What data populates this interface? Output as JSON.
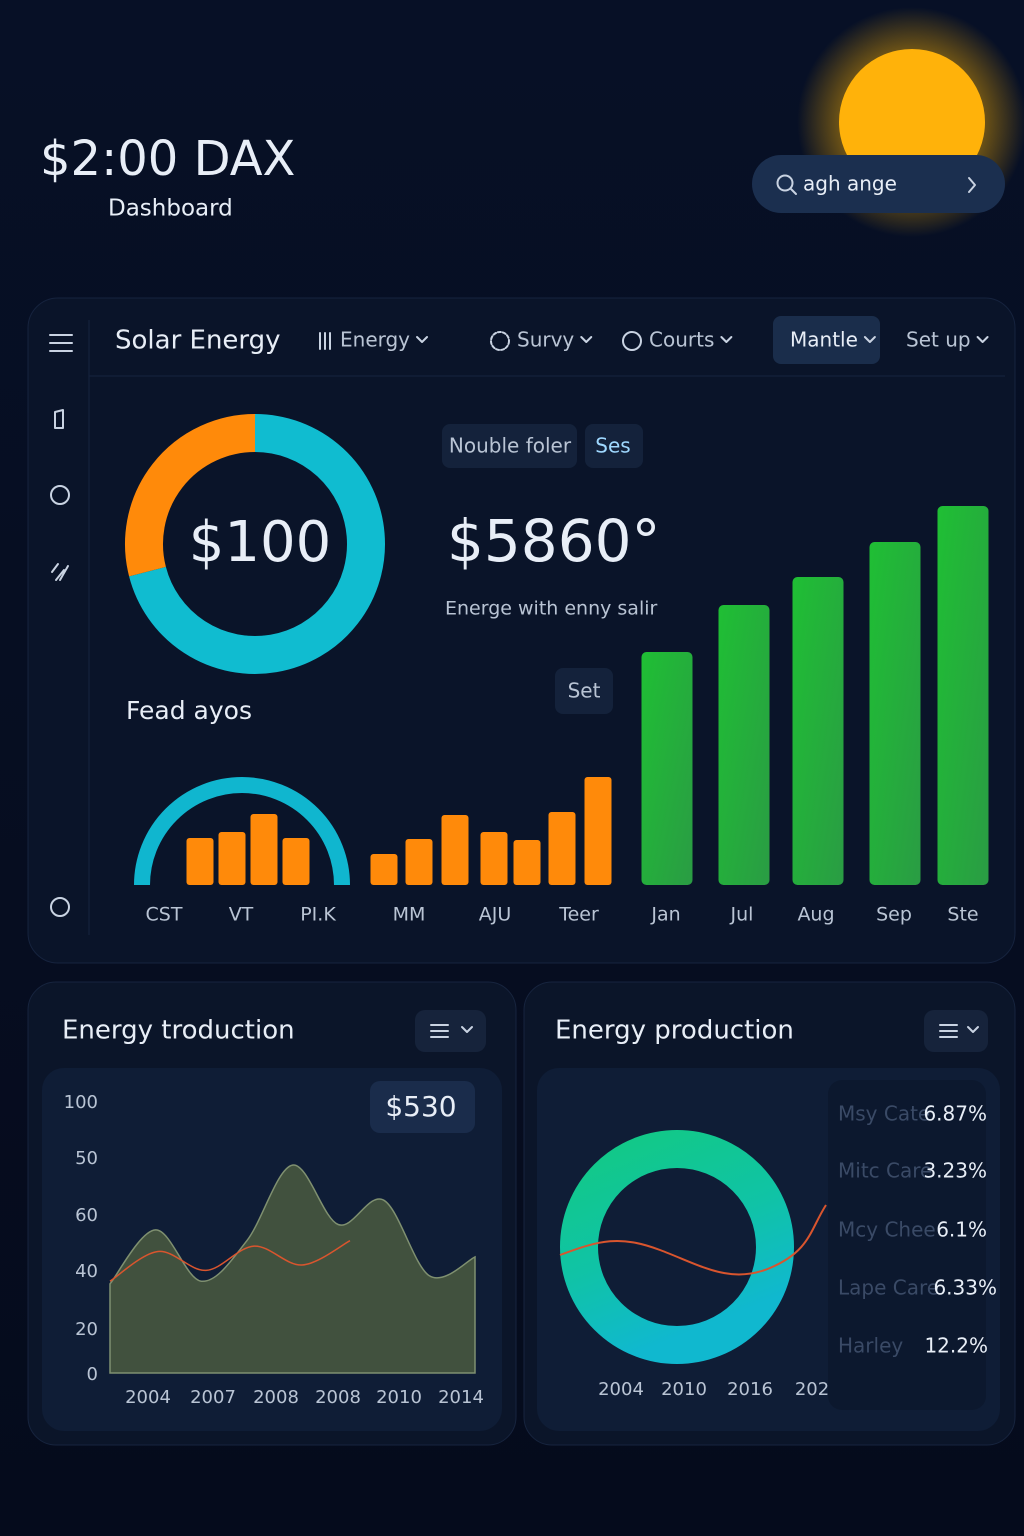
{
  "header": {
    "title": "$2:00 DAX",
    "subtitle": "Dashboard",
    "search": "agh ange"
  },
  "nav": {
    "brand": "Solar Energy",
    "items": [
      "Energy",
      "Survy",
      "Courts",
      "Mantle",
      "Set up"
    ],
    "active": "Mantle"
  },
  "summary": {
    "donut": {
      "type": "pie",
      "label": "$100",
      "values": [
        71,
        29
      ],
      "colors": [
        "#10bcd0",
        "#ff8a0a"
      ]
    },
    "chips": [
      "Nouble foler",
      "Ses"
    ],
    "big_value": "$5860°",
    "caption": "Energe with enny salir",
    "set_chip": "Set",
    "gauge_label": "Fead ayos"
  },
  "bar_chart": {
    "type": "bar",
    "ylim": [
      0,
      400
    ],
    "categories": [
      "CST",
      "VT",
      null,
      "PI.K",
      "MM",
      null,
      null,
      "AJU",
      null,
      "Teer",
      null,
      "Jan",
      "Jul",
      "Aug",
      "Sep",
      "Ste"
    ],
    "series": [
      {
        "color": "#ff8a0a",
        "values": [
          47,
          53,
          71,
          47,
          31,
          46,
          70,
          53,
          45,
          73,
          108,
          null,
          null,
          null,
          null,
          null
        ]
      },
      {
        "color": "#22b33a",
        "values": [
          null,
          null,
          null,
          null,
          null,
          null,
          null,
          null,
          null,
          null,
          null,
          233,
          280,
          308,
          343,
          379
        ]
      }
    ]
  },
  "production_left": {
    "title": "Energy troduction",
    "badge": "$530",
    "chart_data": {
      "type": "area",
      "ylim": [
        0,
        100
      ],
      "ylabels": [
        "100",
        "50",
        "60",
        "40",
        "20",
        "0"
      ],
      "xlabels": [
        "2004",
        "2007",
        "2008",
        "2008",
        "2010",
        "2014"
      ],
      "series": [
        {
          "color": "#7f9070",
          "values": [
            33,
            53,
            34,
            49,
            77,
            55,
            64,
            36,
            43
          ]
        },
        {
          "color": "#d9552e",
          "values": [
            34,
            45,
            38,
            47,
            40,
            49
          ]
        }
      ]
    }
  },
  "production_right": {
    "title": "Energy production",
    "xlabels": [
      "2004",
      "2010",
      "2016",
      "202"
    ],
    "items": [
      {
        "name": "Msy Cate",
        "value": "6.87%"
      },
      {
        "name": "Mitc Care",
        "value": "3.23%"
      },
      {
        "name": "Mcy Chee",
        "value": "6.1%"
      },
      {
        "name": "Lape Care",
        "value": "6.33%"
      },
      {
        "name": "Harley",
        "value": "12.2%"
      }
    ]
  }
}
